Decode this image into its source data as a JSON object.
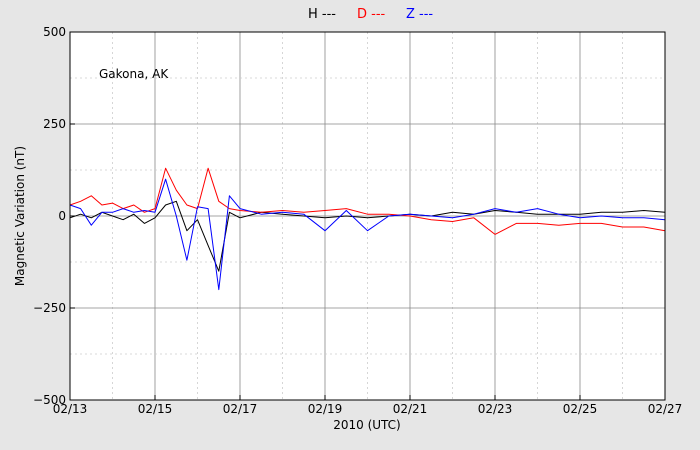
{
  "chart_data": {
    "type": "line",
    "title": "",
    "xlabel": "2010 (UTC)",
    "ylabel": "Magnetic Variation (nT)",
    "annotation": "Gakona, AK",
    "ylim": [
      -500,
      500
    ],
    "xlim": [
      "2010-02-13",
      "2010-02-27"
    ],
    "grid": true,
    "legend_placement": "top-center",
    "x_tick_labels": [
      "02/13",
      "02/15",
      "02/17",
      "02/19",
      "02/21",
      "02/23",
      "02/25",
      "02/27"
    ],
    "y_ticks": [
      -500,
      -250,
      0,
      250,
      500
    ],
    "y_tick_labels": [
      "−500",
      "−250",
      "0",
      "250",
      "500"
    ],
    "x_dates": [
      "2010-02-13",
      "2010-02-13T06:00",
      "2010-02-13T12:00",
      "2010-02-13T18:00",
      "2010-02-14",
      "2010-02-14T06:00",
      "2010-02-14T12:00",
      "2010-02-14T18:00",
      "2010-02-15",
      "2010-02-15T06:00",
      "2010-02-15T12:00",
      "2010-02-15T18:00",
      "2010-02-16",
      "2010-02-16T06:00",
      "2010-02-16T12:00",
      "2010-02-16T18:00",
      "2010-02-17",
      "2010-02-17T12:00",
      "2010-02-18",
      "2010-02-18T12:00",
      "2010-02-19",
      "2010-02-19T12:00",
      "2010-02-20",
      "2010-02-20T12:00",
      "2010-02-21",
      "2010-02-21T12:00",
      "2010-02-22",
      "2010-02-22T12:00",
      "2010-02-23",
      "2010-02-23T12:00",
      "2010-02-24",
      "2010-02-24T12:00",
      "2010-02-25",
      "2010-02-25T12:00",
      "2010-02-26",
      "2010-02-26T12:00",
      "2010-02-27"
    ],
    "series": [
      {
        "name": "H ---",
        "color": "#000000",
        "values": [
          -5,
          5,
          -5,
          10,
          0,
          -10,
          5,
          -20,
          -5,
          30,
          40,
          -40,
          -10,
          -80,
          -150,
          10,
          -5,
          10,
          5,
          0,
          -5,
          0,
          -5,
          0,
          5,
          0,
          10,
          5,
          15,
          10,
          5,
          5,
          5,
          10,
          10,
          15,
          10
        ]
      },
      {
        "name": "D ---",
        "color": "#ff0000",
        "values": [
          30,
          40,
          55,
          30,
          35,
          20,
          30,
          10,
          20,
          130,
          70,
          30,
          20,
          130,
          40,
          20,
          15,
          10,
          15,
          10,
          15,
          20,
          5,
          5,
          0,
          -10,
          -15,
          -5,
          -50,
          -20,
          -20,
          -25,
          -20,
          -20,
          -30,
          -30,
          -40
        ]
      },
      {
        "name": "Z ---",
        "color": "#0000ff",
        "values": [
          30,
          20,
          -25,
          10,
          10,
          20,
          10,
          15,
          10,
          100,
          0,
          -120,
          25,
          20,
          -200,
          55,
          20,
          5,
          10,
          5,
          -40,
          15,
          -40,
          0,
          5,
          0,
          -5,
          5,
          20,
          10,
          20,
          5,
          -5,
          0,
          -5,
          -5,
          -10
        ]
      }
    ]
  }
}
